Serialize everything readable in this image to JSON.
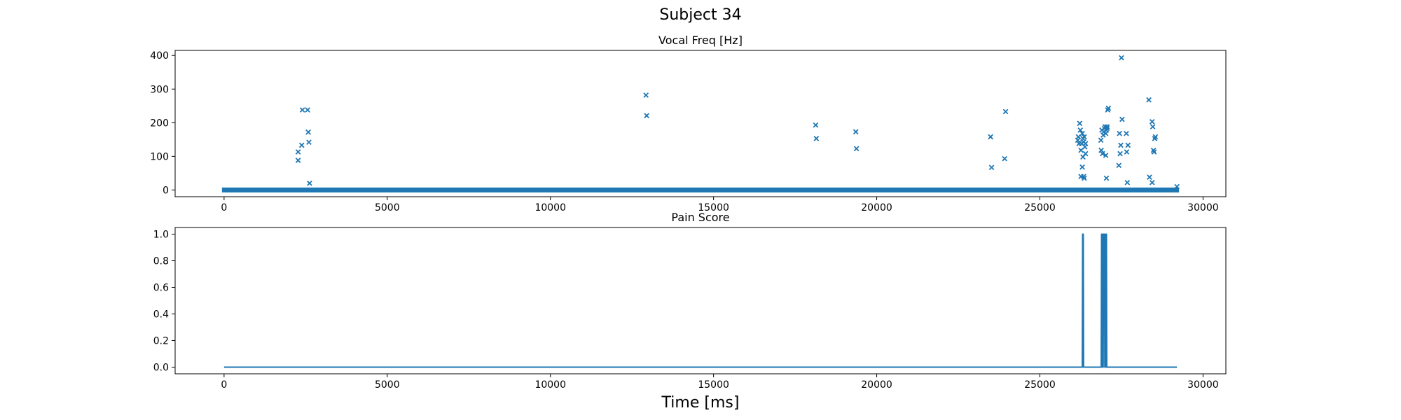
{
  "figure": {
    "suptitle": "Subject 34",
    "xlabel": "Time [ms]"
  },
  "colors": {
    "series": "#1f77b4",
    "axes": "#000000",
    "background": "#ffffff"
  },
  "chart_data": [
    {
      "type": "scatter",
      "title": "Vocal Freq [Hz]",
      "marker": "x",
      "xlim": [
        -1500,
        30700
      ],
      "ylim": [
        -20,
        415
      ],
      "xticks": [
        0,
        5000,
        10000,
        15000,
        20000,
        25000,
        30000
      ],
      "yticks": [
        0,
        100,
        200,
        300,
        400
      ],
      "baseline": {
        "y": 0,
        "x_from": 0,
        "x_to": 29200,
        "note_value": "dense run of zero-valued samples"
      },
      "points": [
        [
          2270,
          88
        ],
        [
          2270,
          113
        ],
        [
          2380,
          133
        ],
        [
          2400,
          238
        ],
        [
          2560,
          238
        ],
        [
          2580,
          172
        ],
        [
          2600,
          142
        ],
        [
          2620,
          20
        ],
        [
          12930,
          282
        ],
        [
          12950,
          221
        ],
        [
          18130,
          193
        ],
        [
          18150,
          153
        ],
        [
          19360,
          173
        ],
        [
          19380,
          123
        ],
        [
          23490,
          158
        ],
        [
          23520,
          67
        ],
        [
          23920,
          93
        ],
        [
          23950,
          233
        ],
        [
          26160,
          148
        ],
        [
          26180,
          158
        ],
        [
          26200,
          138
        ],
        [
          26220,
          198
        ],
        [
          26240,
          178
        ],
        [
          26260,
          118
        ],
        [
          26280,
          138
        ],
        [
          26300,
          168
        ],
        [
          26320,
          153
        ],
        [
          26340,
          143
        ],
        [
          26360,
          158
        ],
        [
          26380,
          128
        ],
        [
          26400,
          108
        ],
        [
          26300,
          68
        ],
        [
          26320,
          98
        ],
        [
          26340,
          40
        ],
        [
          26260,
          40
        ],
        [
          26360,
          35
        ],
        [
          26400,
          138
        ],
        [
          26870,
          148
        ],
        [
          26880,
          118
        ],
        [
          26900,
          178
        ],
        [
          26920,
          108
        ],
        [
          26940,
          163
        ],
        [
          26960,
          173
        ],
        [
          26980,
          183
        ],
        [
          27000,
          188
        ],
        [
          27020,
          168
        ],
        [
          27040,
          178
        ],
        [
          27060,
          183
        ],
        [
          27080,
          238
        ],
        [
          27100,
          243
        ],
        [
          27020,
          103
        ],
        [
          27040,
          35
        ],
        [
          27060,
          188
        ],
        [
          27420,
          73
        ],
        [
          27440,
          168
        ],
        [
          27460,
          108
        ],
        [
          27480,
          133
        ],
        [
          27500,
          393
        ],
        [
          27520,
          210
        ],
        [
          27650,
          168
        ],
        [
          27660,
          113
        ],
        [
          27680,
          22
        ],
        [
          27700,
          133
        ],
        [
          28340,
          268
        ],
        [
          28360,
          38
        ],
        [
          28440,
          203
        ],
        [
          28460,
          188
        ],
        [
          28480,
          118
        ],
        [
          28500,
          113
        ],
        [
          28520,
          153
        ],
        [
          28540,
          158
        ],
        [
          28440,
          22
        ],
        [
          29200,
          10
        ]
      ]
    },
    {
      "type": "line",
      "title": "Pain Score",
      "xlim": [
        -1500,
        30700
      ],
      "ylim": [
        -0.05,
        1.05
      ],
      "xticks": [
        0,
        5000,
        10000,
        15000,
        20000,
        25000,
        30000
      ],
      "yticks": [
        0.0,
        0.2,
        0.4,
        0.6,
        0.8,
        1.0
      ],
      "ytick_labels": [
        "0.0",
        "0.2",
        "0.4",
        "0.6",
        "0.8",
        "1.0"
      ],
      "x": [
        0,
        26300,
        26310,
        26330,
        26340,
        26880,
        26890,
        26910,
        26920,
        26940,
        26950,
        26980,
        26990,
        27010,
        27020,
        27040,
        27050,
        29200
      ],
      "y": [
        0,
        0,
        1,
        1,
        0,
        0,
        1,
        1,
        0,
        0,
        1,
        1,
        0,
        0,
        1,
        1,
        0,
        0
      ]
    }
  ]
}
